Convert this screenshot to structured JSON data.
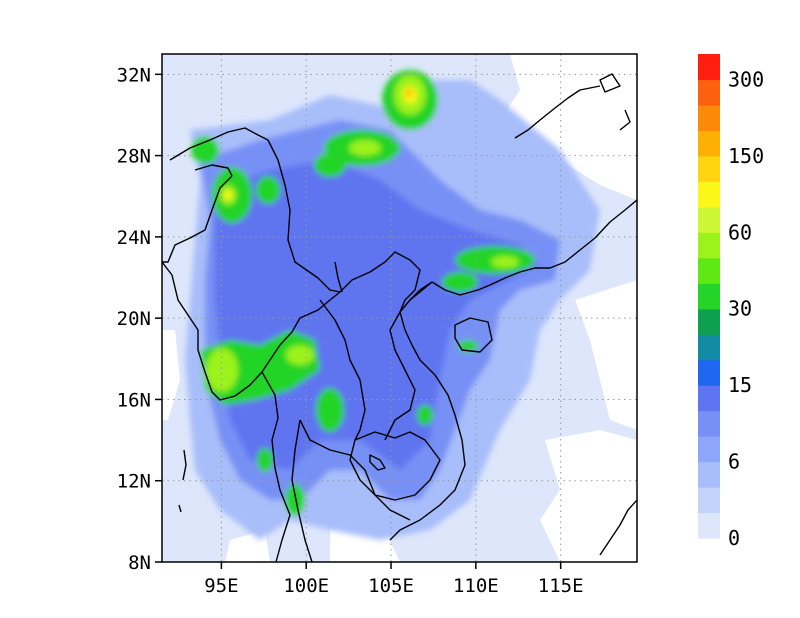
{
  "map": {
    "lon_range": [
      91.5,
      119.5
    ],
    "lat_range": [
      8,
      33
    ],
    "gridlines": "dotted",
    "lat_ticks": [
      {
        "value": 8,
        "label": "8N"
      },
      {
        "value": 12,
        "label": "12N"
      },
      {
        "value": 16,
        "label": "16N"
      },
      {
        "value": 20,
        "label": "20N"
      },
      {
        "value": 24,
        "label": "24N"
      },
      {
        "value": 28,
        "label": "28N"
      },
      {
        "value": 32,
        "label": "32N"
      }
    ],
    "lon_ticks": [
      {
        "value": 95,
        "label": "95E"
      },
      {
        "value": 100,
        "label": "100E"
      },
      {
        "value": 105,
        "label": "105E"
      },
      {
        "value": 110,
        "label": "110E"
      },
      {
        "value": 115,
        "label": "115E"
      }
    ]
  },
  "colorbar": {
    "colors": [
      "#dde6fb",
      "#c3d3fa",
      "#a8befa",
      "#8da6f7",
      "#7790f5",
      "#5f74f0",
      "#1f66f0",
      "#128aa3",
      "#0fa04f",
      "#24d428",
      "#5ee915",
      "#9cf21b",
      "#cdf735",
      "#fbf719",
      "#fed50f",
      "#fdb003",
      "#fc8a06",
      "#fd600e",
      "#ff1e10"
    ],
    "labels": [
      "0",
      "6",
      "15",
      "30",
      "60",
      "150",
      "300"
    ]
  }
}
